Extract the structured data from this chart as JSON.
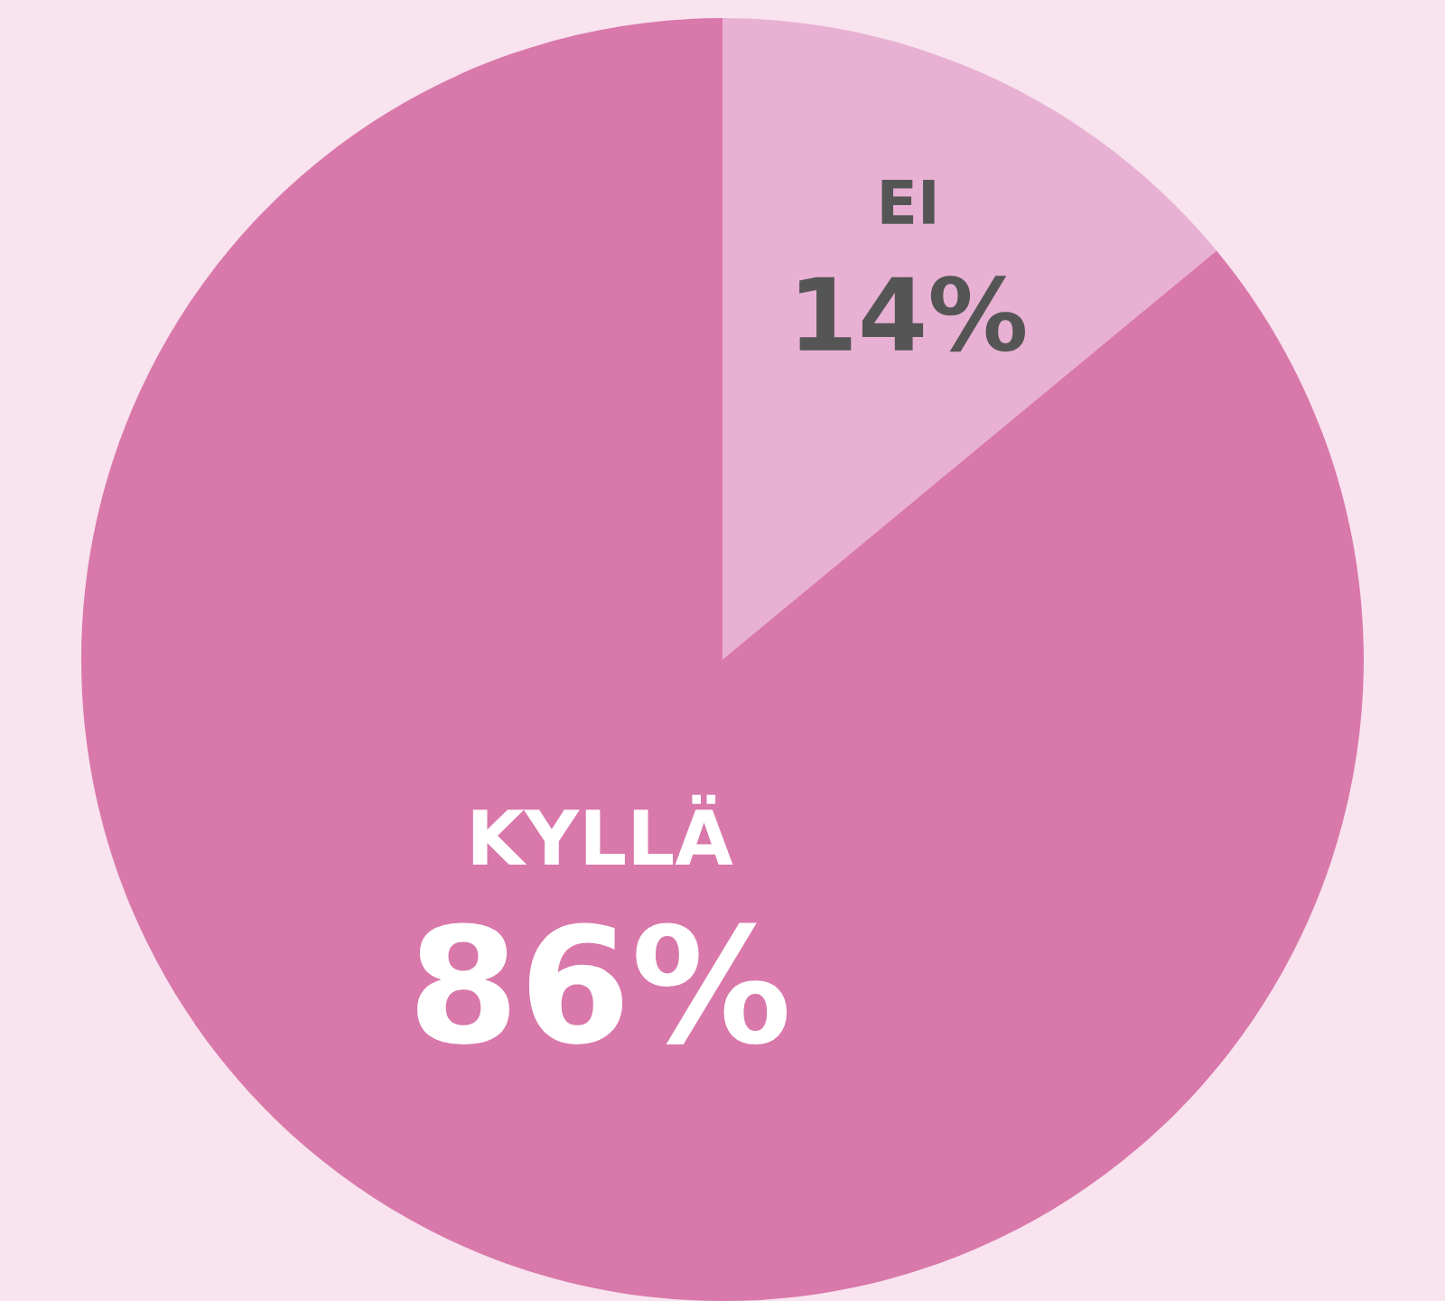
{
  "chart_data": {
    "type": "pie",
    "categories": [
      "EI",
      "KYLLÄ"
    ],
    "values": [
      14,
      86
    ],
    "colors": [
      "#e8b1d3",
      "#d978aa"
    ],
    "value_labels": [
      "14%",
      "86%"
    ],
    "legend": false
  }
}
